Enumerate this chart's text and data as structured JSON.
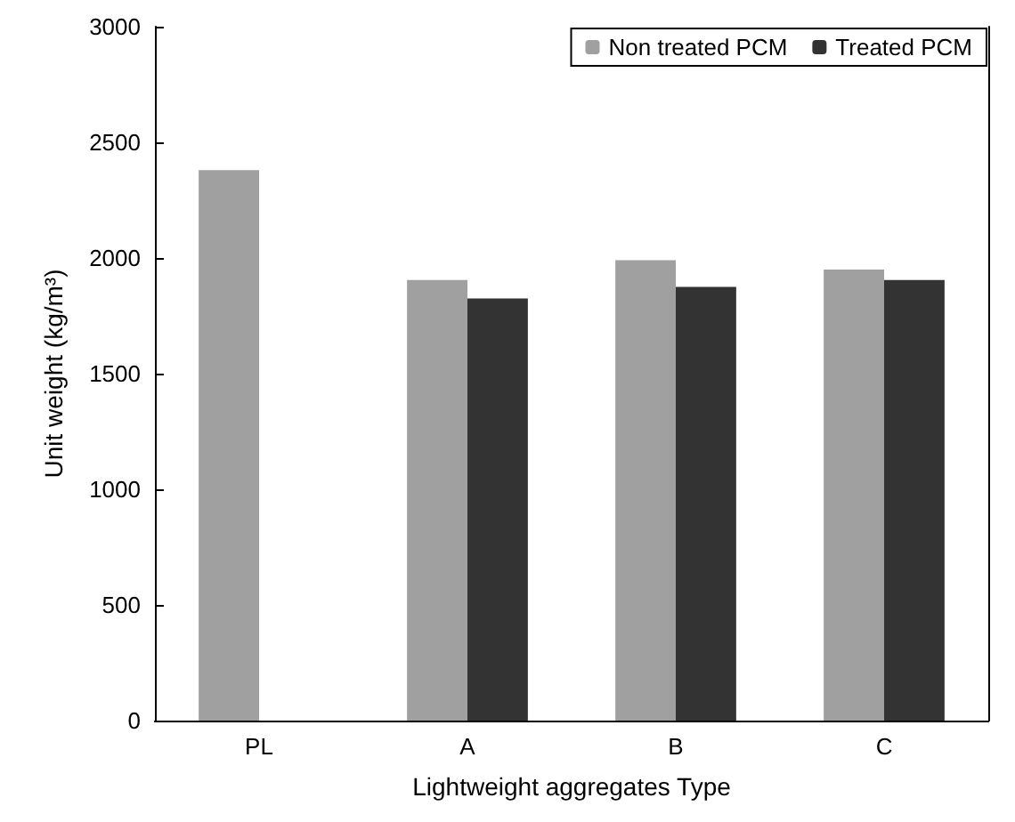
{
  "chart_data": {
    "type": "bar",
    "xlabel": "Lightweight aggregates Type",
    "ylabel": "Unit weight (kg/m³)",
    "categories": [
      "PL",
      "A",
      "B",
      "C"
    ],
    "series": [
      {
        "name": "Non treated PCM",
        "color": "#a0a0a0",
        "values": [
          2380,
          1905,
          1990,
          1950
        ]
      },
      {
        "name": "Treated PCM",
        "color": "#333333",
        "values": [
          null,
          1825,
          1875,
          1905
        ]
      }
    ],
    "ylim": [
      0,
      3000
    ],
    "yticks": [
      0,
      500,
      1000,
      1500,
      2000,
      2500,
      3000
    ],
    "grid": false,
    "legend": "top right"
  }
}
